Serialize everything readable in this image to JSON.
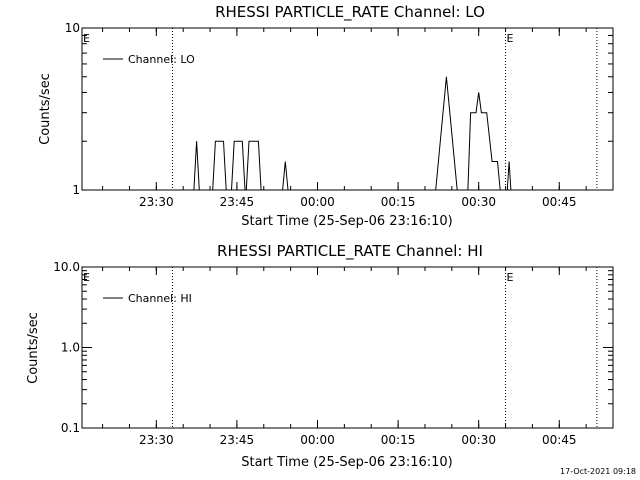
{
  "chart_data": [
    {
      "type": "line",
      "title": "RHESSI PARTICLE_RATE Channel: LO",
      "xlabel": "Start Time (25-Sep-06 23:16:10)",
      "ylabel": "Counts/sec",
      "yscale": "log",
      "ylim": [
        1,
        10
      ],
      "y_ticks": [
        "1",
        "10"
      ],
      "xlim": [
        "23:16:10",
        "00:55:00"
      ],
      "x_ticks": [
        "23:30",
        "23:45",
        "00:00",
        "00:15",
        "00:30",
        "00:45"
      ],
      "grid": false,
      "legend_position": "top-left",
      "markers": [
        {
          "label": "E",
          "time": "23:16:10"
        },
        {
          "label": "E",
          "time": "00:35:00"
        }
      ],
      "vlines": [
        "23:33:00",
        "00:35:00",
        "00:52:00"
      ],
      "series": [
        {
          "name": "Channel: LO",
          "color": "#000000",
          "points": [
            [
              "23:37:00",
              1
            ],
            [
              "23:37:30",
              2
            ],
            [
              "23:38:00",
              1
            ],
            [
              "23:40:30",
              1
            ],
            [
              "23:41:00",
              2
            ],
            [
              "23:42:30",
              2
            ],
            [
              "23:43:00",
              1
            ],
            [
              "23:44:00",
              1
            ],
            [
              "23:44:30",
              2
            ],
            [
              "23:46:00",
              2
            ],
            [
              "23:46:30",
              1
            ],
            [
              "23:46:45",
              1
            ],
            [
              "23:47:15",
              2
            ],
            [
              "23:49:00",
              2
            ],
            [
              "23:49:30",
              1
            ],
            [
              "23:53:30",
              1
            ],
            [
              "23:54:00",
              1.5
            ],
            [
              "23:54:30",
              1
            ],
            [
              "00:22:00",
              1
            ],
            [
              "00:24:00",
              5
            ],
            [
              "00:26:00",
              1
            ],
            [
              "00:28:00",
              1
            ],
            [
              "00:28:30",
              3
            ],
            [
              "00:29:30",
              3
            ],
            [
              "00:30:00",
              4
            ],
            [
              "00:30:30",
              3
            ],
            [
              "00:31:30",
              3
            ],
            [
              "00:32:30",
              1.5
            ],
            [
              "00:33:30",
              1.5
            ],
            [
              "00:34:00",
              1
            ],
            [
              "00:35:20",
              1
            ],
            [
              "00:35:40",
              1.5
            ],
            [
              "00:36:00",
              1
            ]
          ]
        }
      ]
    },
    {
      "type": "line",
      "title": "RHESSI PARTICLE_RATE Channel: HI",
      "xlabel": "Start Time (25-Sep-06 23:16:10)",
      "ylabel": "Counts/sec",
      "yscale": "log",
      "ylim": [
        0.1,
        10
      ],
      "y_ticks": [
        "10.0",
        "1.0",
        "0.1"
      ],
      "xlim": [
        "23:16:10",
        "00:55:00"
      ],
      "x_ticks": [
        "23:30",
        "23:45",
        "00:00",
        "00:15",
        "00:30",
        "00:45"
      ],
      "grid": false,
      "legend_position": "top-left",
      "markers": [
        {
          "label": "E",
          "time": "23:16:10"
        },
        {
          "label": "E",
          "time": "00:35:00"
        }
      ],
      "vlines": [
        "23:33:00",
        "00:35:00",
        "00:52:00"
      ],
      "series": [
        {
          "name": "Channel: HI",
          "color": "#000000",
          "points": []
        }
      ]
    }
  ],
  "footer": {
    "timestamp": "17-Oct-2021 09:18"
  }
}
